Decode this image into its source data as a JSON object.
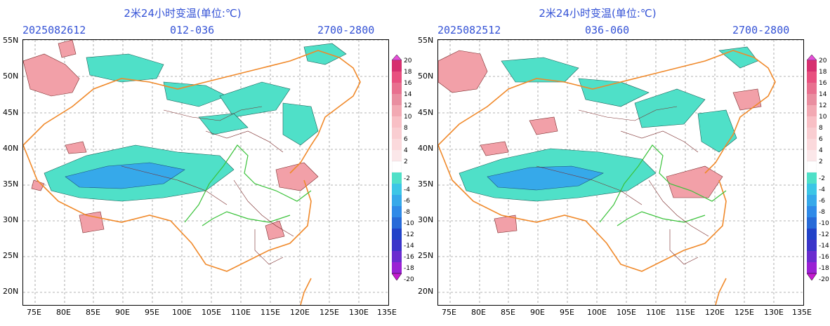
{
  "colorbar_ticks": [
    "20",
    "18",
    "16",
    "14",
    "12",
    "10",
    "8",
    "6",
    "4",
    "2",
    "-2",
    "-4",
    "-6",
    "-8",
    "-10",
    "-12",
    "-14",
    "-16",
    "-18",
    "-20"
  ],
  "colorbar_colors": [
    "#e64fd8",
    "#d6306f",
    "#e8507f",
    "#e8708f",
    "#e98ea0",
    "#f2a9b3",
    "#f8bfc5",
    "#f9cdd1",
    "#fbd9dc",
    "#fbe7e9",
    "#ffffff",
    "#4fe0c8",
    "#3cc6e6",
    "#36a9ea",
    "#2f8ae8",
    "#276ad8",
    "#2142c8",
    "#3b34c9",
    "#6a2ccf",
    "#9a21d4",
    "#c51ad0"
  ],
  "lat_labels": [
    "55N",
    "50N",
    "45N",
    "40N",
    "35N",
    "30N",
    "25N",
    "20N"
  ],
  "lon_labels": [
    "75E",
    "80E",
    "85E",
    "90E",
    "95E",
    "100E",
    "105E",
    "110E",
    "115E",
    "120E",
    "125E",
    "130E",
    "135E"
  ],
  "panels": [
    {
      "title": "2米24小时变温(单位:℃)",
      "run": "2025082612",
      "range": "012-036",
      "period": "2700-2800"
    },
    {
      "title": "2米24小时变温(单位:℃)",
      "run": "2025082512",
      "range": "036-060",
      "period": "2700-2800"
    }
  ]
}
